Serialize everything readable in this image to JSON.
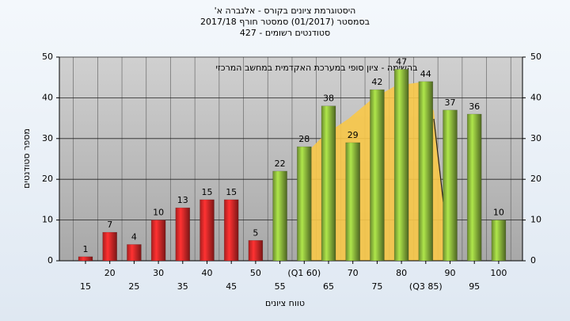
{
  "chart_data": {
    "type": "bar",
    "title": [
      "היסטוגרמת ציונים בקורס - אלגברה א'",
      "בסמסטר (01/2017) סמסטר חורף 2017/18",
      "סטודנטים רשומים - 427"
    ],
    "annotation": "בהשימה - ציון סופי במערכת האקדמית במחשב המרכזי",
    "x_label": "טווח ציונים",
    "y_label": "מספר סטודנטים",
    "categories": [
      "15",
      "20",
      "25",
      "30",
      "35",
      "40",
      "45",
      "50",
      "55",
      "(Q1 60)",
      "65",
      "70",
      "75",
      "80",
      "(Q3 85)",
      "90",
      "95",
      "100"
    ],
    "values": [
      1,
      7,
      4,
      10,
      13,
      15,
      15,
      5,
      22,
      28,
      38,
      29,
      42,
      47,
      44,
      37,
      36,
      10
    ],
    "colors": [
      "#e02828",
      "#e02828",
      "#e02828",
      "#e02828",
      "#e02828",
      "#e02828",
      "#e02828",
      "#e02828",
      "#8cb83c",
      "#8cb83c",
      "#8cb83c",
      "#8cb83c",
      "#8cb83c",
      "#8cb83c",
      "#8cb83c",
      "#8cb83c",
      "#8cb83c",
      "#8cb83c"
    ],
    "ylim": [
      0,
      50
    ],
    "yticks": [
      0,
      10,
      20,
      30,
      40,
      50
    ],
    "y2lim": [
      0,
      50
    ],
    "y2ticks": [
      0,
      10,
      20,
      30,
      40,
      50
    ],
    "grid": true
  }
}
